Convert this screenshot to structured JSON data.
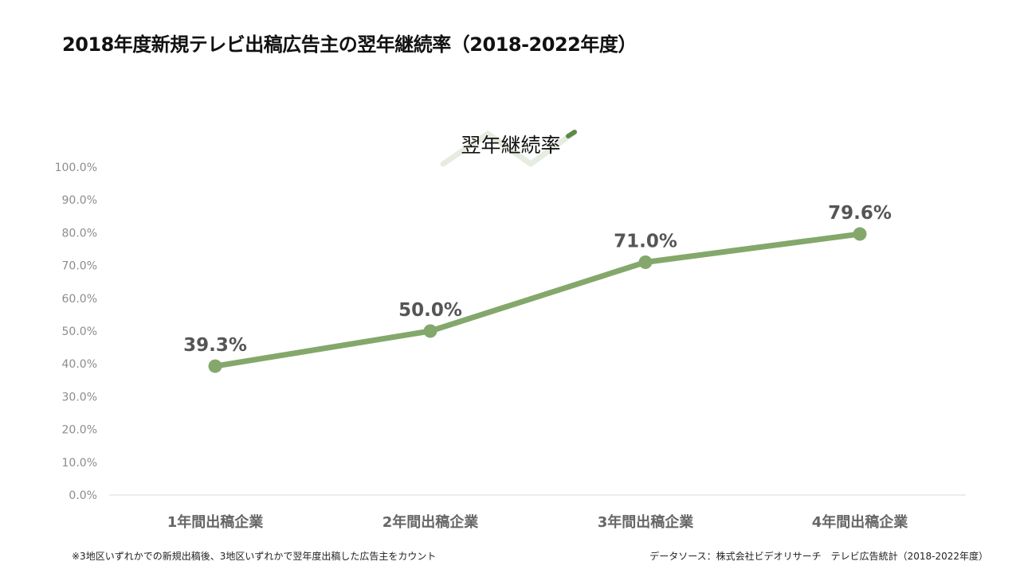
{
  "page": {
    "title": "2018年度新規テレビ出稿広告主の翌年継続率（2018-2022年度）",
    "footnote": "※3地区いずれかでの新規出稿後、3地区いずれかで翌年度出稿した広告主をカウント",
    "source": "データソース：株式会社ビデオリサーチ　テレビ広告統計（2018-2022年度）"
  },
  "chart_data": {
    "type": "line",
    "title": "翌年継続率",
    "categories": [
      "1年間出稿企業",
      "2年間出稿企業",
      "3年間出稿企業",
      "4年間出稿企業"
    ],
    "series": [
      {
        "values": [
          39.3,
          50.0,
          71.0,
          79.6
        ],
        "data_labels": [
          "39.3%",
          "50.0%",
          "71.0%",
          "79.6%"
        ]
      }
    ],
    "xlabel": "",
    "ylabel": "",
    "ylim": [
      0,
      100
    ],
    "yticks": [
      0,
      10,
      20,
      30,
      40,
      50,
      60,
      70,
      80,
      90,
      100
    ],
    "ytick_labels": [
      "0.0%",
      "10.0%",
      "20.0%",
      "30.0%",
      "40.0%",
      "50.0%",
      "60.0%",
      "70.0%",
      "80.0%",
      "90.0%",
      "100.0%"
    ],
    "grid": false,
    "legend": "none",
    "colors": {
      "line": "#84a86b",
      "data_label": "#555555",
      "axis_text": "#8c8c8c",
      "category_text": "#666666",
      "axis_line": "#d9d9d9"
    }
  }
}
